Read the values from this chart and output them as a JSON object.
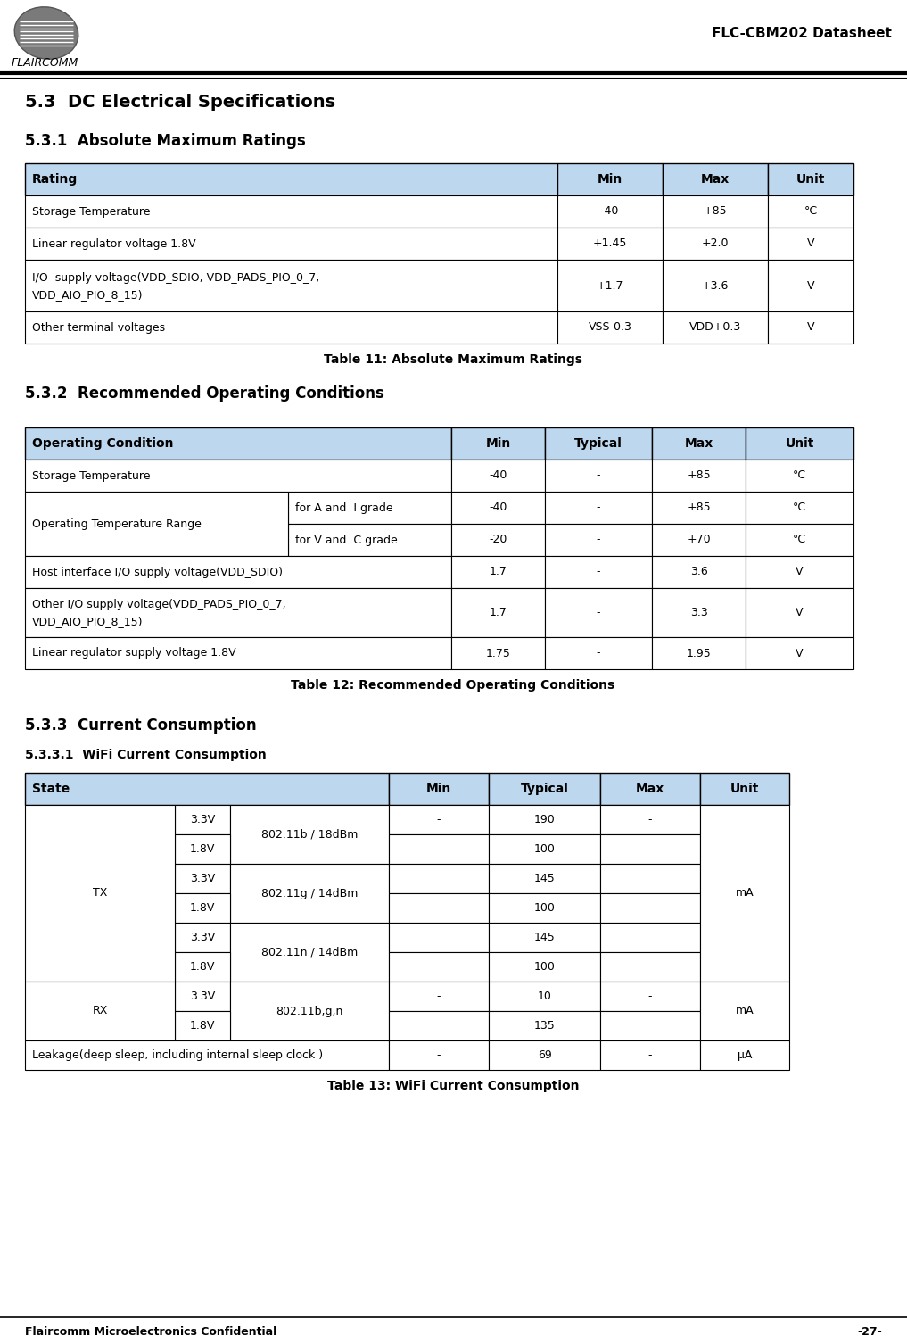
{
  "page_title": "FLC-CBM202 Datasheet",
  "company": "FLAIRCOMM",
  "footer_left": "Flaircomm Microelectronics Confidential",
  "footer_right": "-27-",
  "section_title": "5.3  DC Electrical Specifications",
  "sub1_title": "5.3.1  Absolute Maximum Ratings",
  "table1_caption": "Table 11: Absolute Maximum Ratings",
  "table1_headers": [
    "Rating",
    "Min",
    "Max",
    "Unit"
  ],
  "table1_rows": [
    [
      "Storage Temperature",
      "-40",
      "+85",
      "°C"
    ],
    [
      "Linear regulator voltage 1.8V",
      "+1.45",
      "+2.0",
      "V"
    ],
    [
      "I/O  supply voltage(VDD_SDIO, VDD_PADS_PIO_0_7,\nVDD_AIO_PIO_8_15)",
      "+1.7",
      "+3.6",
      "V"
    ],
    [
      "Other terminal voltages",
      "VSS-0.3",
      "VDD+0.3",
      "V"
    ]
  ],
  "sub2_title": "5.3.2  Recommended Operating Conditions",
  "table2_caption": "Table 12: Recommended Operating Conditions",
  "table2_rows": [
    [
      "Storage Temperature",
      "",
      "-40",
      "-",
      "+85",
      "°C"
    ],
    [
      "Operating Temperature Range",
      "for A and  I grade",
      "-40",
      "-",
      "+85",
      "°C"
    ],
    [
      "Operating Temperature Range",
      "for V and  C grade",
      "-20",
      "-",
      "+70",
      "°C"
    ],
    [
      "Host interface I/O supply voltage(VDD_SDIO)",
      "",
      "1.7",
      "-",
      "3.6",
      "V"
    ],
    [
      "Other I/O supply voltage(VDD_PADS_PIO_0_7,\nVDD_AIO_PIO_8_15)",
      "",
      "1.7",
      "-",
      "3.3",
      "V"
    ],
    [
      "Linear regulator supply voltage 1.8V",
      "",
      "1.75",
      "-",
      "1.95",
      "V"
    ]
  ],
  "sub3_title": "5.3.3  Current Consumption",
  "sub31_title": "5.3.3.1  WiFi Current Consumption",
  "table3_caption": "Table 13: WiFi Current Consumption",
  "header_bg": "#BDD7EE",
  "row_bg_white": "#FFFFFF",
  "border_color": "#000000"
}
